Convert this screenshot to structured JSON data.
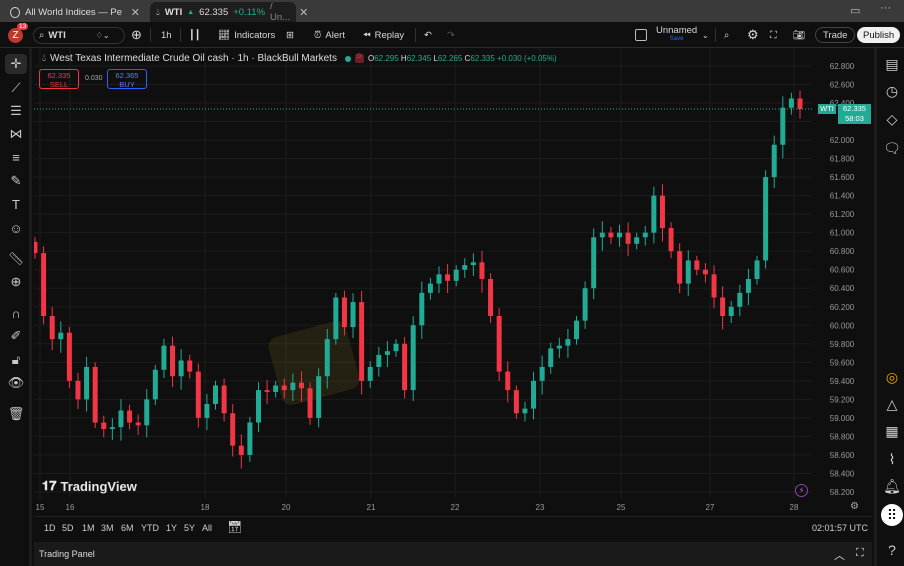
{
  "tabs": [
    {
      "label": "All World Indices — Performa",
      "icon": "globe-icon"
    },
    {
      "label": "WTI",
      "price": "62.335",
      "change": "+0.11%",
      "suffix": "/ Un...",
      "icon": "oil-drop-icon"
    }
  ],
  "toolbar": {
    "notifications": "13",
    "symbol": "WTI",
    "interval": "1h",
    "indicators": "Indicators",
    "alert": "Alert",
    "replay": "Replay",
    "layout_name": "Unnamed",
    "layout_sub": "Save",
    "trade": "Trade",
    "publish": "Publish"
  },
  "legend": {
    "title": "West Texas Intermediate Crude Oil cash · 1h · BlackBull Markets",
    "o_label": "O",
    "o": "62.295",
    "h_label": "H",
    "h": "62.345",
    "l_label": "L",
    "l": "62.265",
    "c_label": "C",
    "c": "62.335",
    "change": "+0.030 (+0.05%)",
    "sell_price": "62.335",
    "sell_label": "SELL",
    "spread": "0.030",
    "buy_price": "62.365",
    "buy_label": "BUY"
  },
  "price_label": {
    "symbol": "WTI",
    "price": "62.335",
    "countdown": "58:03"
  },
  "branding": "TradingView",
  "ranges": [
    "1D",
    "5D",
    "1M",
    "3M",
    "6M",
    "YTD",
    "1Y",
    "5Y",
    "All"
  ],
  "clock": "02:01:57 UTC",
  "trading_panel": "Trading Panel",
  "colors": {
    "up": "#22ab94",
    "down": "#f23645",
    "background": "#0f0f0f",
    "accent": "#2962ff"
  },
  "chart_data": {
    "type": "candlestick",
    "symbol": "WTI",
    "interval": "1h",
    "ylim": [
      58.1,
      62.9
    ],
    "y_ticks": [
      "62.800",
      "62.600",
      "62.400",
      "62.200",
      "62.000",
      "61.800",
      "61.600",
      "61.400",
      "61.200",
      "61.000",
      "60.800",
      "60.600",
      "60.400",
      "60.200",
      "60.000",
      "59.800",
      "59.600",
      "59.400",
      "59.200",
      "59.000",
      "58.800",
      "58.600",
      "58.400",
      "58.200"
    ],
    "x_ticks": [
      "15",
      "16",
      "18",
      "20",
      "21",
      "22",
      "23",
      "25",
      "27",
      "28"
    ],
    "grid": true,
    "first_open": 60.9,
    "closes": [
      60.78,
      60.1,
      59.85,
      59.92,
      59.4,
      59.2,
      59.55,
      58.95,
      58.88,
      58.9,
      59.08,
      58.95,
      58.92,
      59.2,
      59.52,
      59.78,
      59.45,
      59.62,
      59.5,
      59.0,
      59.15,
      59.35,
      59.05,
      58.7,
      58.6,
      58.95,
      59.3,
      59.28,
      59.35,
      59.3,
      59.38,
      59.32,
      59.0,
      59.45,
      59.85,
      60.3,
      59.98,
      60.25,
      59.4,
      59.55,
      59.68,
      59.72,
      59.8,
      59.3,
      60.0,
      60.35,
      60.45,
      60.55,
      60.48,
      60.6,
      60.65,
      60.68,
      60.5,
      60.1,
      59.5,
      59.3,
      59.05,
      59.1,
      59.4,
      59.55,
      59.75,
      59.78,
      59.85,
      60.05,
      60.4,
      60.95,
      61.0,
      60.95,
      61.0,
      60.88,
      60.95,
      61.0,
      61.4,
      61.05,
      60.8,
      60.45,
      60.7,
      60.6,
      60.55,
      60.3,
      60.1,
      60.2,
      60.35,
      60.5,
      60.7,
      61.6,
      61.95,
      62.35,
      62.45,
      62.335
    ]
  }
}
